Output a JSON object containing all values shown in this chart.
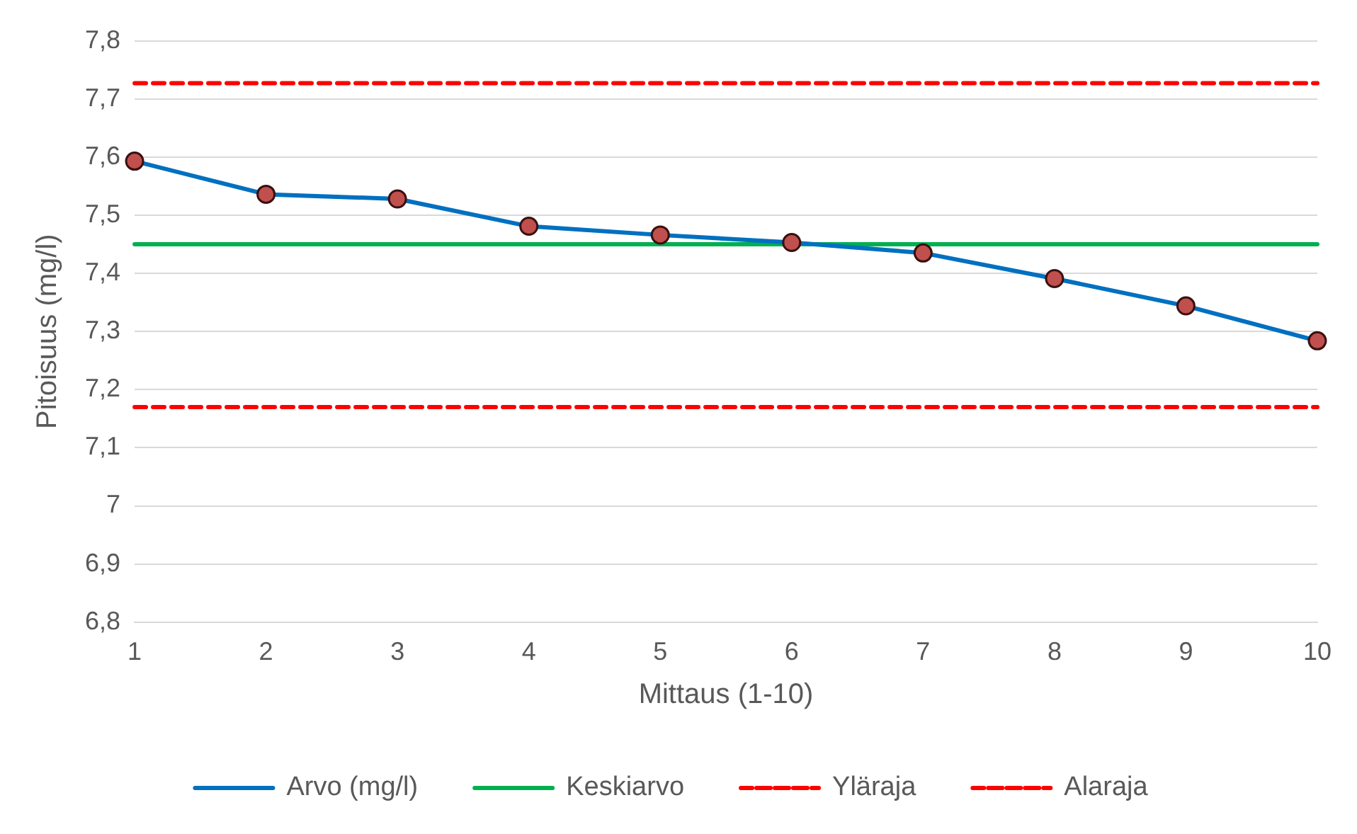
{
  "chart_data": {
    "type": "line",
    "categories": [
      "1",
      "2",
      "3",
      "4",
      "5",
      "6",
      "7",
      "8",
      "9",
      "10"
    ],
    "series": [
      {
        "name": "Arvo (mg/l)",
        "color": "#0070c0",
        "marker": "circle",
        "line_style": "solid",
        "values": [
          7.593,
          7.536,
          7.528,
          7.481,
          7.466,
          7.453,
          7.435,
          7.391,
          7.344,
          7.284
        ]
      },
      {
        "name": "Keskiarvo",
        "color": "#00b050",
        "marker": "none",
        "line_style": "solid",
        "values": [
          7.45,
          7.45,
          7.45,
          7.45,
          7.45,
          7.45,
          7.45,
          7.45,
          7.45,
          7.45
        ]
      },
      {
        "name": "Yläraja",
        "color": "#ff0000",
        "marker": "none",
        "line_style": "dashed",
        "values": [
          7.727,
          7.727,
          7.727,
          7.727,
          7.727,
          7.727,
          7.727,
          7.727,
          7.727,
          7.727
        ]
      },
      {
        "name": "Alaraja",
        "color": "#ff0000",
        "marker": "none",
        "line_style": "dashed",
        "values": [
          7.17,
          7.17,
          7.17,
          7.17,
          7.17,
          7.17,
          7.17,
          7.17,
          7.17,
          7.17
        ]
      }
    ],
    "xlabel": "Mittaus (1-10)",
    "ylabel": "Pitoisuus (mg/l)",
    "ylim": [
      6.8,
      7.8
    ],
    "yticks": [
      {
        "value": 6.8,
        "label": "6,8"
      },
      {
        "value": 6.9,
        "label": "6,9"
      },
      {
        "value": 7,
        "label": "7"
      },
      {
        "value": 7.1,
        "label": "7,1"
      },
      {
        "value": 7.2,
        "label": "7,2"
      },
      {
        "value": 7.3,
        "label": "7,3"
      },
      {
        "value": 7.4,
        "label": "7,4"
      },
      {
        "value": 7.5,
        "label": "7,5"
      },
      {
        "value": 7.6,
        "label": "7,6"
      },
      {
        "value": 7.7,
        "label": "7,7"
      },
      {
        "value": 7.8,
        "label": "7,8"
      }
    ],
    "grid": "y",
    "legend": "bottom"
  }
}
